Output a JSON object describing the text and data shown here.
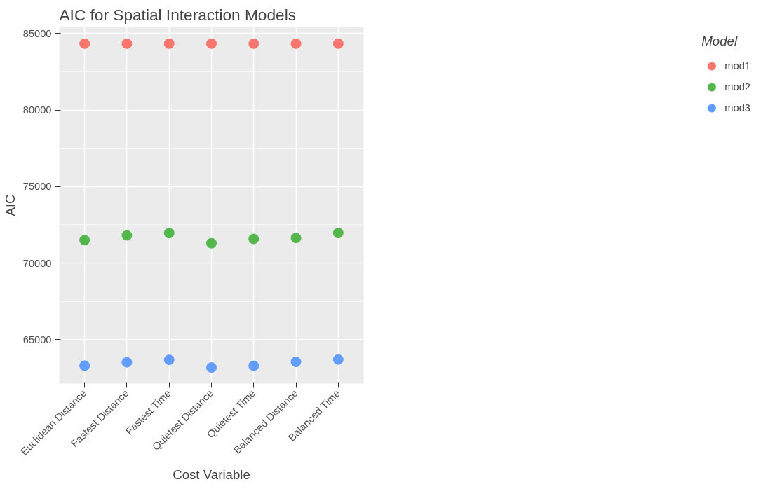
{
  "chart_data": {
    "type": "scatter",
    "title": "AIC for Spatial Interaction Models",
    "xlabel": "Cost Variable",
    "ylabel": "AIC",
    "legend_title": "Model",
    "categories": [
      "Euclidean Distance",
      "Fastest Distance",
      "Fastest Time",
      "Quietest Distance",
      "Quietest Time",
      "Balanced Distance",
      "Balanced Time"
    ],
    "series": [
      {
        "name": "mod1",
        "color": "#f8766d",
        "values": [
          84340,
          84340,
          84340,
          84340,
          84340,
          84340,
          84340
        ]
      },
      {
        "name": "mod2",
        "color": "#53b74c",
        "values": [
          71500,
          71810,
          71960,
          71300,
          71580,
          71640,
          71970
        ]
      },
      {
        "name": "mod3",
        "color": "#619cff",
        "values": [
          63300,
          63520,
          63680,
          63180,
          63290,
          63550,
          63700
        ]
      }
    ],
    "ylim": [
      62130,
      85430
    ],
    "yticks": [
      65000,
      70000,
      75000,
      80000,
      85000
    ],
    "grid": true,
    "legend": "right",
    "marker": "circle"
  }
}
